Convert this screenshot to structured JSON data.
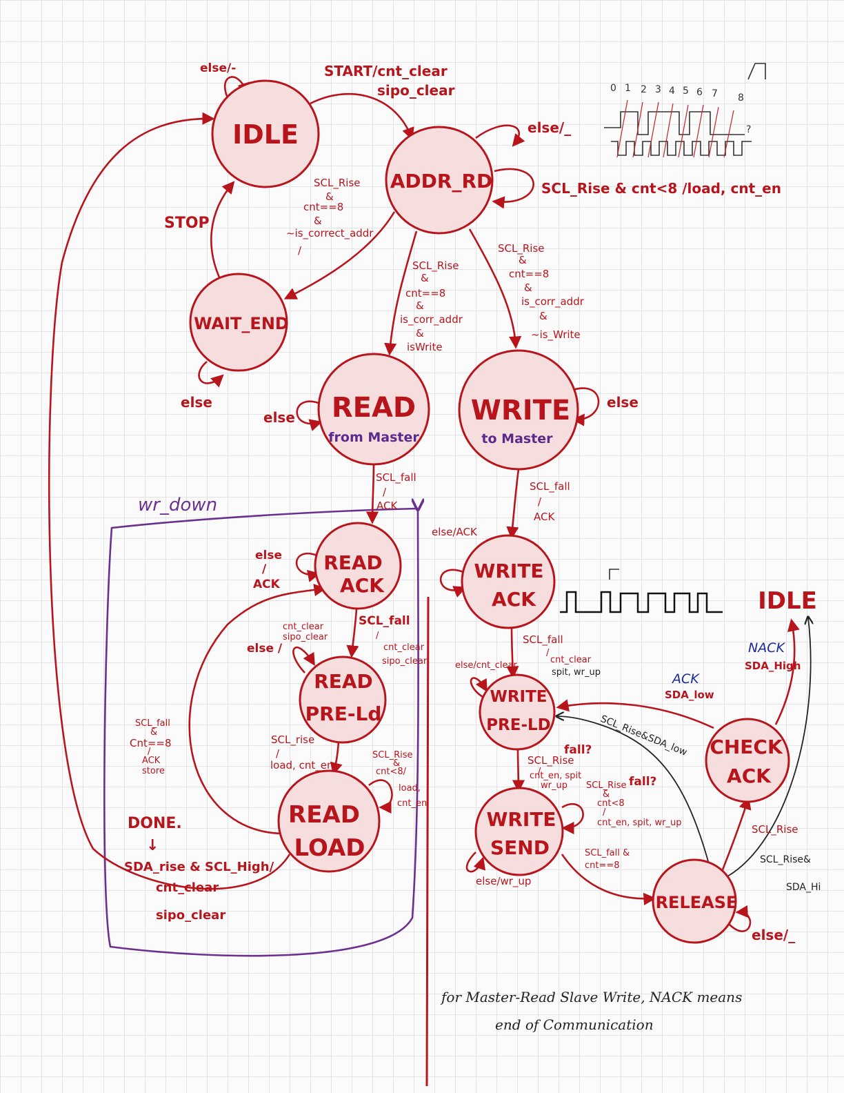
{
  "states": {
    "idle": "IDLE",
    "addr_rd": "ADDR_RD",
    "wait_end": "WAIT_END",
    "read": "READ",
    "read_sub": "from Master",
    "write": "WRITE",
    "write_sub": "to Master",
    "read_ack_1": "READ",
    "read_ack_2": "ACK",
    "read_preld_1": "READ",
    "read_preld_2": "PRE-Ld",
    "read_load_1": "READ",
    "read_load_2": "LOAD",
    "write_ack_1": "WRITE",
    "write_ack_2": "ACK",
    "write_preld_1": "WRITE",
    "write_preld_2": "PRE-LD",
    "write_send_1": "WRITE",
    "write_send_2": "SEND",
    "release": "RELEASE",
    "check_ack_1": "CHECK",
    "check_ack_2": "ACK",
    "idle_right": "IDLE"
  },
  "labels": {
    "idle_self": "else/-",
    "start_1": "START/cnt_clear",
    "start_2": "sipo_clear",
    "addr_self_else": "else/_",
    "addr_self_rise": "SCL_Rise & cnt<8 /load, cnt_en",
    "stop": "STOP",
    "wrong_addr_1": "SCL_Rise",
    "wrong_addr_2": "&",
    "wrong_addr_3": "cnt==8",
    "wrong_addr_4": "&",
    "wrong_addr_5": "~is_correct_addr",
    "wrong_addr_6": "/",
    "wait_self": "else",
    "to_read_1": "SCL_Rise",
    "to_read_2": "&",
    "to_read_3": "cnt==8",
    "to_read_4": "&",
    "to_read_5": "is_corr_addr",
    "to_read_6": "&",
    "to_read_7": "isWrite",
    "to_write_1": "SCL_Rise",
    "to_write_2": "&",
    "to_write_3": "cnt==8",
    "to_write_4": "&",
    "to_write_5": "is_corr_addr",
    "to_write_6": "&",
    "to_write_7": "~is_Write",
    "read_self": "else",
    "write_self": "else",
    "read_to_ack_1": "SCL_fall",
    "read_to_ack_2": "/",
    "read_to_ack_3": "ACK",
    "write_to_ack_1": "SCL_fall",
    "write_to_ack_2": "/",
    "write_to_ack_3": "ACK",
    "wr_down": "wr_down",
    "read_ack_self_1": "else",
    "read_ack_self_2": "/",
    "read_ack_self_3": "ACK",
    "write_ack_self": "else/ACK",
    "rack_to_preld_1": "SCL_fall",
    "rack_to_preld_2": "/",
    "rack_to_preld_3": "cnt_clear",
    "rack_to_preld_4": "sipo_clear",
    "rpreld_self_1": "else /",
    "rpreld_self_2": "cnt_clear",
    "rpreld_self_3": "sipo_clear",
    "rload_back_1": "SCL_fall",
    "rload_back_2": "&",
    "rload_back_3": "Cnt==8",
    "rload_back_4": "/",
    "rload_back_5": "ACK",
    "rload_back_6": "store",
    "rpreld_to_load_1": "SCL_rise",
    "rpreld_to_load_2": "/",
    "rpreld_to_load_3": "load, cnt_en",
    "rload_self_1": "SCL_Rise",
    "rload_self_2": "&",
    "rload_self_3": "cnt<8/",
    "rload_self_4": "load,",
    "rload_self_5": "cnt_en",
    "done": "DONE.",
    "done_arrow": "↓",
    "done_1": "SDA_rise & SCL_High/",
    "done_2": "cnt_clear",
    "done_3": "sipo_clear",
    "wack_to_preld_1": "SCL_fall",
    "wack_to_preld_2": "/",
    "wack_to_preld_3": "cnt_clear",
    "wack_to_preld_4": "spit, wr_up",
    "wpreld_self": "else/cnt_clear",
    "wpreld_to_send_1": "SCL_Rise",
    "wpreld_to_send_2": "fall?",
    "wpreld_to_send_3": "/",
    "wpreld_to_send_4": "cnt_en, spit",
    "wpreld_to_send_5": "wr_up",
    "wsend_self_1": "SCL_Rise",
    "wsend_self_2": "fall?",
    "wsend_self_3": "&",
    "wsend_self_4": "cnt<8",
    "wsend_self_5": "/",
    "wsend_self_6": "cnt_en, spit, wr_up",
    "wsend_self_else": "else/wr_up",
    "to_release_1": "SCL_fall &",
    "to_release_2": "cnt==8",
    "release_self": "else/_",
    "release_to_check": "SCL_Rise",
    "release_to_preld": "SCL_Rise&SDA_low",
    "release_to_idle_1": "SCL_Rise&",
    "release_to_idle_2": "SDA_Hi",
    "check_to_preld_1": "ACK",
    "check_to_preld_2": "SDA_low",
    "check_to_idle_1": "NACK",
    "check_to_idle_2": "SDA_High"
  },
  "timing": {
    "ticks": [
      "0",
      "1",
      "2",
      "3",
      "4",
      "5",
      "6",
      "7",
      "8"
    ],
    "question": "?"
  },
  "note": {
    "line1": "for Master-Read Slave Write, NACK means",
    "line2": "end of Communication"
  }
}
